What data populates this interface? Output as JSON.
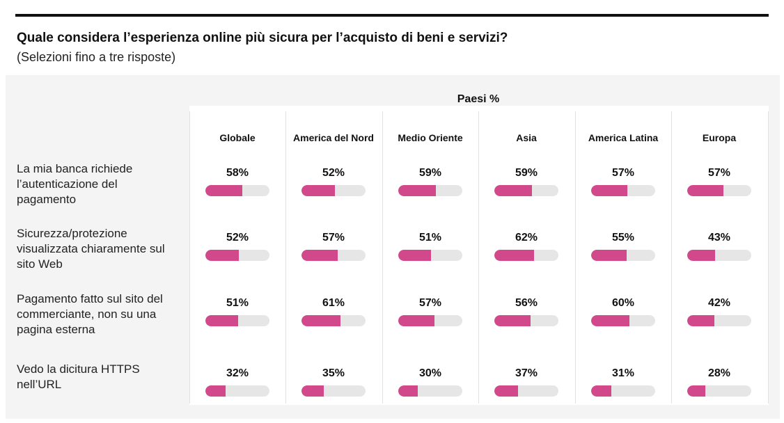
{
  "title": "Quale considera l’esperienza online più sicura per l’acquisto di beni e servizi?",
  "subtitle": "(Selezioni fino a tre risposte)",
  "chart_data": {
    "type": "table",
    "column_group_label": "Paesi %",
    "columns": [
      "Globale",
      "America del Nord",
      "Medio Oriente",
      "Asia",
      "America Latina",
      "Europa"
    ],
    "rows": [
      {
        "label": "La mia banca richiede l’autenticazione del pagamento",
        "values": [
          58,
          52,
          59,
          59,
          57,
          57
        ],
        "display": [
          "58%",
          "52%",
          "59%",
          "59%",
          "57%",
          "57%"
        ]
      },
      {
        "label": "Sicurezza/protezione visualizzata chiaramente sul sito Web",
        "values": [
          52,
          57,
          51,
          62,
          55,
          43
        ],
        "display": [
          "52%",
          "57%",
          "51%",
          "62%",
          "55%",
          "43%"
        ]
      },
      {
        "label": "Pagamento fatto sul sito del commerciante, non su una pagina esterna",
        "values": [
          51,
          61,
          57,
          56,
          60,
          42
        ],
        "display": [
          "51%",
          "61%",
          "57%",
          "56%",
          "60%",
          "42%"
        ]
      },
      {
        "label": "Vedo la dicitura HTTPS nell’URL",
        "values": [
          32,
          35,
          30,
          37,
          31,
          28
        ],
        "display": [
          "32%",
          "35%",
          "30%",
          "37%",
          "31%",
          "28%"
        ]
      }
    ],
    "bar_max": 100,
    "bar_color": "#d1498b",
    "track_color": "#e6e6e6"
  }
}
